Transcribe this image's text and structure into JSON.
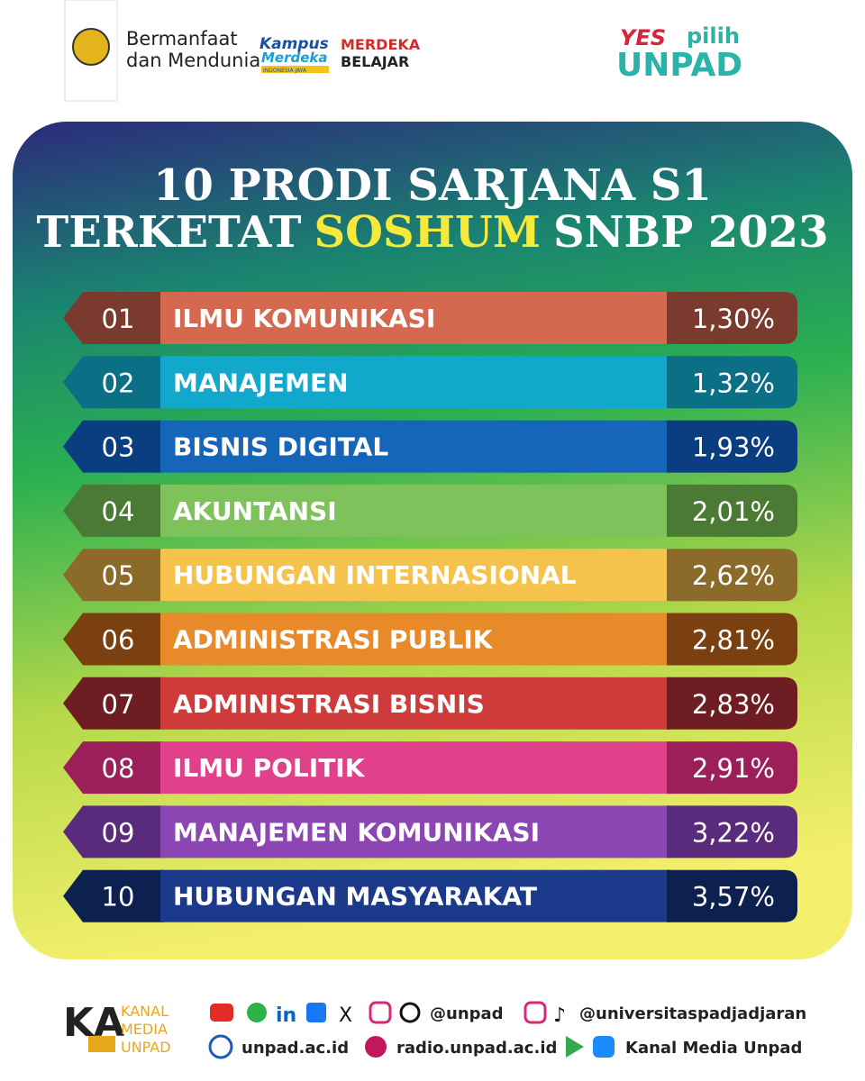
{
  "header": {
    "tagline_1": "Bermanfaat",
    "tagline_2": "dan Mendunia",
    "kampus_1": "Kampus",
    "kampus_2": "Merdeka",
    "kampus_3": "INDONESIA JAYA",
    "merdeka_1": "MERDEKA",
    "merdeka_2": "BELAJAR",
    "yes": "YES",
    "pilih": "pilih",
    "unpad": "UNPAD"
  },
  "title": {
    "line1": "10 PRODI SARJANA S1",
    "line2_start": "TERKETAT",
    "highlight": "SOSHUM",
    "line2_end": "SNBP 2023"
  },
  "rows": [
    {
      "rank": "01",
      "name": "ILMU KOMUNIKASI",
      "percent": "1,30%"
    },
    {
      "rank": "02",
      "name": "MANAJEMEN",
      "percent": "1,32%"
    },
    {
      "rank": "03",
      "name": "BISNIS DIGITAL",
      "percent": "1,93%"
    },
    {
      "rank": "04",
      "name": "AKUNTANSI",
      "percent": "2,01%"
    },
    {
      "rank": "05",
      "name": "HUBUNGAN INTERNASIONAL",
      "percent": "2,62%"
    },
    {
      "rank": "06",
      "name": "ADMINISTRASI PUBLIK",
      "percent": "2,81%"
    },
    {
      "rank": "07",
      "name": "ADMINISTRASI BISNIS",
      "percent": "2,83%"
    },
    {
      "rank": "08",
      "name": "ILMU POLITIK",
      "percent": "2,91%"
    },
    {
      "rank": "09",
      "name": "MANAJEMEN KOMUNIKASI",
      "percent": "3,22%"
    },
    {
      "rank": "10",
      "name": "HUBUNGAN MASYARAKAT",
      "percent": "3,57%"
    }
  ],
  "footer": {
    "kanal_1": "KANAL",
    "kanal_2": "MEDIA",
    "kanal_3": "UNPAD",
    "handle_1": "@unpad",
    "handle_2": "@universitaspadjadjaran",
    "site": "unpad.ac.id",
    "radio": "radio.unpad.ac.id",
    "app": "Kanal Media Unpad"
  }
}
